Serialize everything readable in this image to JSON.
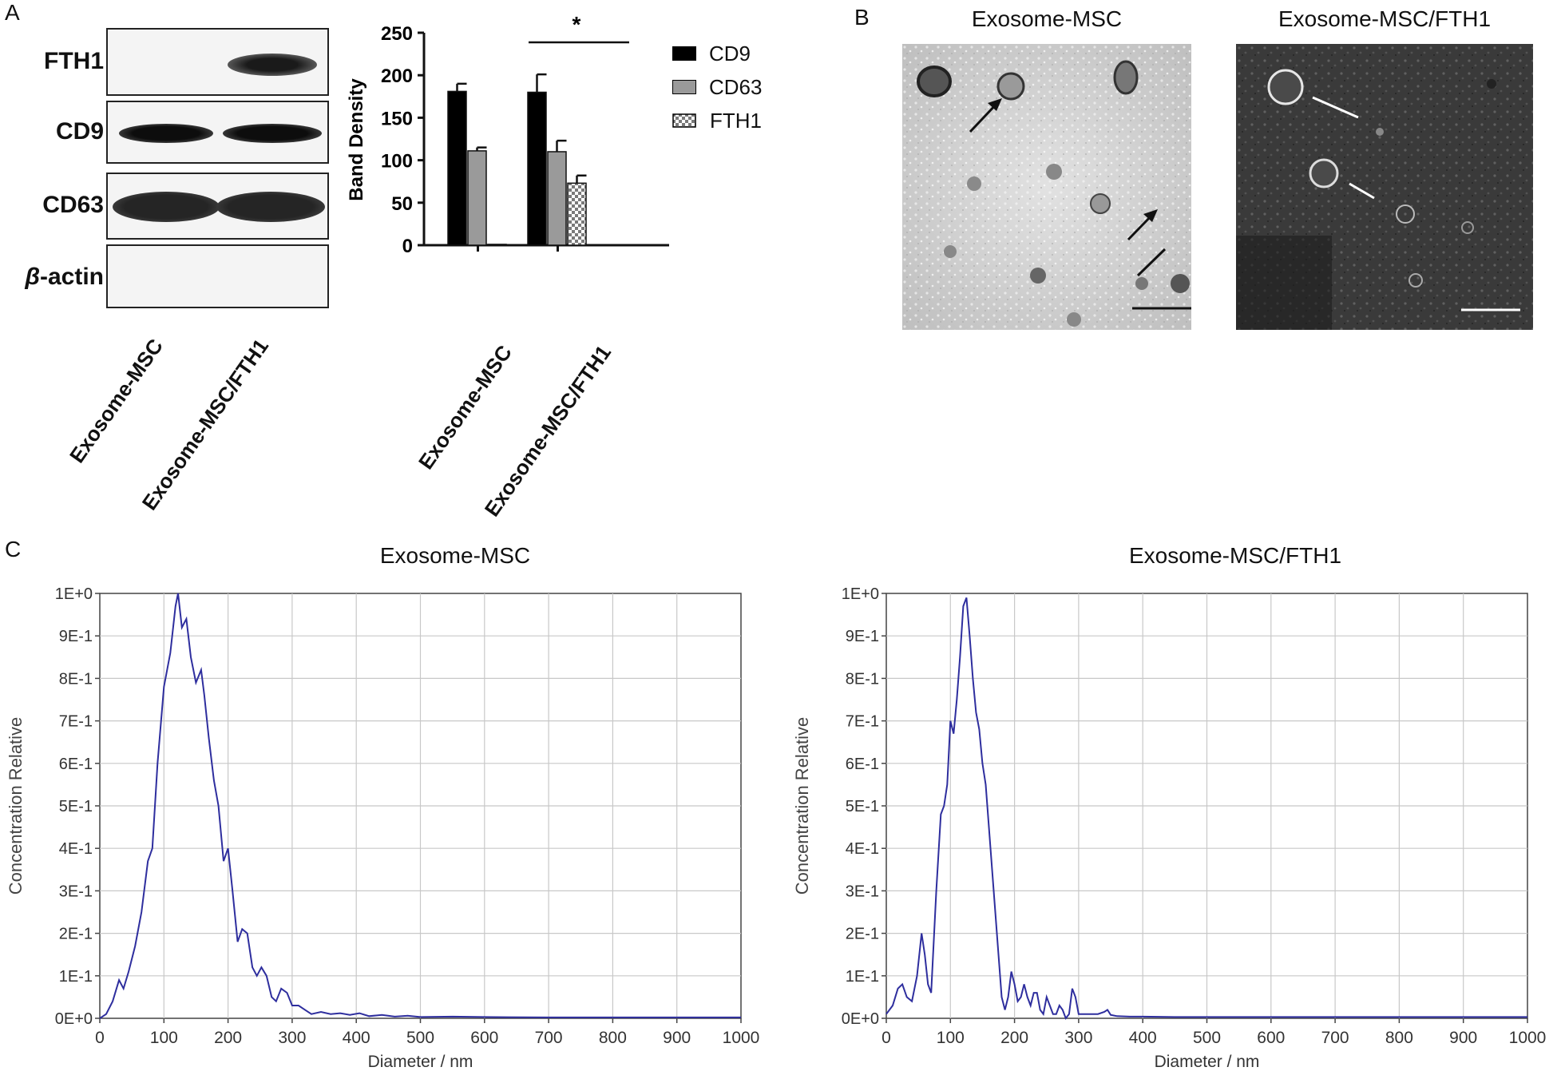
{
  "panel_a": {
    "letter": "A",
    "blot": {
      "rows": [
        {
          "label": "FTH1",
          "bands": [
            0,
            1
          ]
        },
        {
          "label": "CD9",
          "bands": [
            1,
            1
          ]
        },
        {
          "label": "CD63",
          "bands": [
            1,
            1
          ]
        },
        {
          "label_prefix": "β",
          "label": "-actin",
          "bands": [
            0,
            0
          ]
        }
      ],
      "lanes": [
        "Exosome-MSC",
        "Exosome-MSC/FTH1"
      ]
    }
  },
  "panel_b": {
    "letter": "B",
    "images": [
      {
        "title": "Exosome-MSC",
        "background": "#d4d4d4",
        "arrow_color": "#111111"
      },
      {
        "title": "Exosome-MSC/FTH1",
        "background": "#3a3a3a",
        "arrow_color": "#ffffff"
      }
    ]
  },
  "panel_c": {
    "letter": "C"
  },
  "chart_data": [
    {
      "type": "bar",
      "title": "",
      "ylabel": "Band Density",
      "xlabel": "",
      "ylim": [
        0,
        250
      ],
      "yticks": [
        "0",
        "50",
        "100",
        "150",
        "200",
        "250"
      ],
      "categories": [
        "Exosome-MSC",
        "Exosome-MSC/FTH1"
      ],
      "series": [
        {
          "name": "CD9",
          "values": [
            181,
            180
          ],
          "errors": [
            9,
            21
          ],
          "color": "#000000",
          "pattern": "solid"
        },
        {
          "name": "CD63",
          "values": [
            111,
            110
          ],
          "errors": [
            4,
            13
          ],
          "color": "#9a9a9a",
          "pattern": "solid"
        },
        {
          "name": "FTH1",
          "values": [
            1,
            73
          ],
          "errors": [
            0,
            9
          ],
          "color": "#ffffff",
          "pattern": "checker"
        }
      ],
      "significance": "*"
    },
    {
      "type": "line",
      "title": "Exosome-MSC",
      "xlabel": "Diameter / nm",
      "ylabel": "Concentration Relative",
      "xlim": [
        0,
        1000
      ],
      "ylim": [
        0,
        1
      ],
      "xticks": [
        "0",
        "100",
        "200",
        "300",
        "400",
        "500",
        "600",
        "700",
        "800",
        "900",
        "1000"
      ],
      "yticks": [
        "0E+0",
        "1E-1",
        "2E-1",
        "3E-1",
        "4E-1",
        "5E-1",
        "6E-1",
        "7E-1",
        "8E-1",
        "9E-1",
        "1E+0"
      ],
      "color": "#2e2e9e",
      "x": [
        0,
        10,
        20,
        30,
        37,
        45,
        55,
        65,
        75,
        82,
        90,
        100,
        110,
        118,
        122,
        128,
        135,
        142,
        150,
        158,
        163,
        170,
        178,
        185,
        193,
        200,
        207,
        215,
        222,
        230,
        238,
        245,
        252,
        260,
        268,
        275,
        283,
        292,
        300,
        310,
        320,
        330,
        345,
        360,
        375,
        390,
        405,
        420,
        440,
        460,
        480,
        500,
        550,
        600,
        700,
        800,
        900,
        1000
      ],
      "y": [
        0.0,
        0.01,
        0.04,
        0.09,
        0.07,
        0.11,
        0.17,
        0.25,
        0.37,
        0.4,
        0.6,
        0.78,
        0.86,
        0.97,
        1.0,
        0.92,
        0.94,
        0.85,
        0.79,
        0.82,
        0.76,
        0.66,
        0.56,
        0.5,
        0.37,
        0.4,
        0.3,
        0.18,
        0.21,
        0.2,
        0.12,
        0.1,
        0.12,
        0.1,
        0.05,
        0.04,
        0.07,
        0.06,
        0.03,
        0.03,
        0.02,
        0.01,
        0.015,
        0.01,
        0.012,
        0.008,
        0.012,
        0.005,
        0.008,
        0.004,
        0.006,
        0.003,
        0.004,
        0.003,
        0.002,
        0.002,
        0.002,
        0.002
      ]
    },
    {
      "type": "line",
      "title": "Exosome-MSC/FTH1",
      "xlabel": "Diameter / nm",
      "ylabel": "Concentration Relative",
      "xlim": [
        0,
        1000
      ],
      "ylim": [
        0,
        1
      ],
      "xticks": [
        "0",
        "100",
        "200",
        "300",
        "400",
        "500",
        "600",
        "700",
        "800",
        "900",
        "1000"
      ],
      "yticks": [
        "0E+0",
        "1E-1",
        "2E-1",
        "3E-1",
        "4E-1",
        "5E-1",
        "6E-1",
        "7E-1",
        "8E-1",
        "9E-1",
        "1E+0"
      ],
      "color": "#2e2e9e",
      "x": [
        0,
        10,
        18,
        25,
        32,
        40,
        48,
        55,
        60,
        65,
        70,
        78,
        85,
        90,
        95,
        100,
        105,
        110,
        115,
        120,
        125,
        130,
        135,
        140,
        145,
        150,
        155,
        160,
        165,
        170,
        175,
        180,
        185,
        190,
        195,
        200,
        205,
        210,
        215,
        220,
        225,
        230,
        235,
        240,
        245,
        250,
        255,
        260,
        265,
        270,
        275,
        280,
        285,
        290,
        295,
        300,
        310,
        320,
        330,
        340,
        345,
        350,
        360,
        380,
        400,
        450,
        500,
        600,
        700,
        800,
        900,
        1000
      ],
      "y": [
        0.01,
        0.03,
        0.07,
        0.08,
        0.05,
        0.04,
        0.1,
        0.2,
        0.15,
        0.08,
        0.06,
        0.3,
        0.48,
        0.5,
        0.55,
        0.7,
        0.67,
        0.75,
        0.85,
        0.97,
        0.99,
        0.9,
        0.8,
        0.72,
        0.68,
        0.6,
        0.55,
        0.45,
        0.35,
        0.25,
        0.15,
        0.05,
        0.02,
        0.05,
        0.11,
        0.08,
        0.04,
        0.05,
        0.08,
        0.05,
        0.03,
        0.06,
        0.06,
        0.02,
        0.01,
        0.05,
        0.03,
        0.01,
        0.01,
        0.03,
        0.02,
        0.0,
        0.01,
        0.07,
        0.05,
        0.01,
        0.01,
        0.01,
        0.01,
        0.015,
        0.02,
        0.008,
        0.005,
        0.004,
        0.004,
        0.003,
        0.003,
        0.003,
        0.003,
        0.003,
        0.003,
        0.003
      ]
    }
  ]
}
